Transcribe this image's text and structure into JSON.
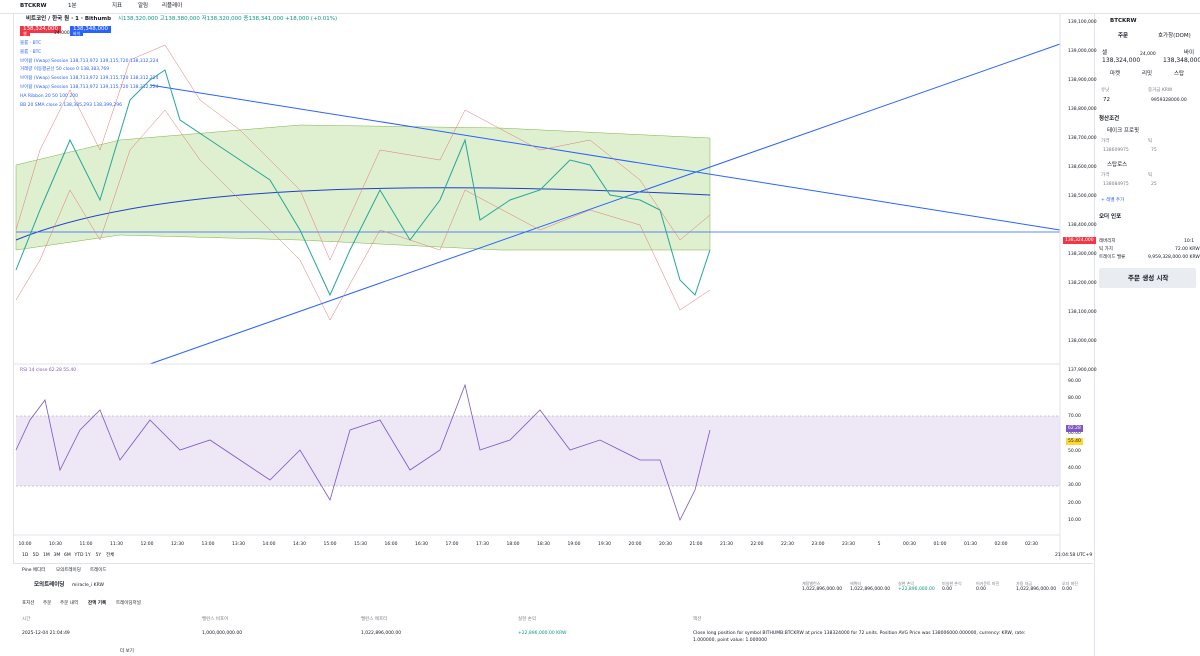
{
  "toolbar": {
    "symbol": "BTCKRW",
    "interval": "1분",
    "indicators": "지표",
    "alerts": "알림",
    "replay": "리플레이"
  },
  "header": {
    "title": "비트코인 / 한국 원 · 1 · Bithumb",
    "ohlc": "시138,320,000 고138,380,000 저138,320,000 종138,341,000 +18,000 (+0.01%)",
    "sell_price": "138,324,000",
    "sell_label": "셀",
    "spread": "24,000",
    "buy_price": "138,348,000",
    "buy_label": "바이"
  },
  "legends": [
    "볼륨 · BTC",
    "볼륨 · BTC",
    "브이왑 (Vwap) Session 138,713,972 139,115,720 138,312,224",
    "거래량 이동평균선 50 close 0 138,383,769",
    "브이왑 (Vwap) Session 138,713,972 139,115,720 138,312,224",
    "브이왑 (Vwap) Session 138,713,972 139,115,720 138,312,224",
    "HA Ribbon 20 50 100 200",
    "BB 20 SMA close 2 138,385,293 138,399,296"
  ],
  "price_axis": [
    "139,100,000",
    "139,000,000",
    "138,900,000",
    "138,800,000",
    "138,700,000",
    "138,600,000",
    "138,500,000",
    "138,400,000",
    "138,300,000",
    "138,200,000",
    "138,100,000",
    "138,000,000",
    "137,900,000"
  ],
  "price_badge": "138,324,000",
  "rsi": {
    "legend": "RSI 14 close 62.28 55.40",
    "axis": [
      "90.00",
      "80.00",
      "70.00",
      "60.00",
      "50.00",
      "40.00",
      "30.00",
      "20.00",
      "10.00"
    ],
    "value": "62.28",
    "ma": "55.40"
  },
  "time_axis": [
    "10:00",
    "10:30",
    "11:00",
    "11:30",
    "12:00",
    "12:30",
    "13:00",
    "13:30",
    "14:00",
    "14:30",
    "15:00",
    "15:30",
    "16:00",
    "16:30",
    "17:00",
    "17:30",
    "18:00",
    "18:30",
    "19:00",
    "19:30",
    "20:00",
    "20:30",
    "21:00",
    "21:30",
    "22:00",
    "22:30",
    "23:00",
    "23:30",
    "5",
    "00:30",
    "01:00",
    "01:30",
    "02:00",
    "02:30"
  ],
  "ranges": [
    "1D",
    "5D",
    "1M",
    "3M",
    "6M",
    "YTD",
    "1Y",
    "5Y",
    "전체"
  ],
  "clock": "21:04:58 UTC+9",
  "order_panel": {
    "symbol": "BTCKRW",
    "tab_order": "주문",
    "tab_dom": "호가창(DOM)",
    "sell": "셀",
    "sell_price": "138,324,000",
    "spread": "24,000",
    "buy": "바이",
    "buy_price": "138,348,000",
    "types": [
      "마켓",
      "리밋",
      "스탑"
    ],
    "unit_label": "유닛",
    "margin_label": "증거금 KRW",
    "units": "72",
    "margin": "9959328000.00",
    "exit_title": "청산조건",
    "take_profit": "테이크 프로핏",
    "tp_price_label": "가격",
    "tp_tick_label": "틱",
    "tp_price": "138609975",
    "tp_ticks": "75",
    "stop_loss": "스탑로스",
    "sl_price_label": "가격",
    "sl_tick_label": "틱",
    "sl_price": "138084975",
    "sl_ticks": "25",
    "add_level": "+ 레벨 추가",
    "info_title": "오더 인포",
    "leverage_label": "레버리지",
    "leverage": "10:1",
    "tick_value_label": "틱 가치",
    "tick_value": "72.00 KRW",
    "trade_value_label": "트레이드 밸류",
    "trade_value": "9,959,328,000.00 KRW",
    "submit": "주문 생성 시작"
  },
  "bottom": {
    "tabs": [
      "Pine 에디터",
      "모의트레이딩",
      "트레이드"
    ],
    "account": "모의트레이딩",
    "account_name": "miracle_i KRW",
    "stats": [
      {
        "label": "계정밸런스",
        "value": "1,022,896,000.00"
      },
      {
        "label": "에퀴티",
        "value": "1,022,896,000.00"
      },
      {
        "label": "실현 손익",
        "value": "+22,896,000.00"
      },
      {
        "label": "미실현 손익",
        "value": "0.00"
      },
      {
        "label": "어카운트 마진",
        "value": "0.00"
      },
      {
        "label": "가용 자금",
        "value": "1,022,896,000.00"
      },
      {
        "label": "오더 마진",
        "value": "0.00"
      }
    ],
    "subtabs": [
      "포지션",
      "주문",
      "주문 내역",
      "잔액 기록",
      "트레이딩저널"
    ],
    "columns": [
      "시간",
      "밸런스 비포어",
      "밸런스 애프터",
      "실현 손익",
      "액션"
    ],
    "row": [
      "2025-12-04 21:04:49",
      "1,000,000,000.00",
      "1,022,896,000.00",
      "+22,896,000.00 KRW",
      "Close long position for symbol BITHUMB:BTCKRW at price 138324000 for 72 units. Position AVG Price was 138006000.000000, currency: KRW, rate: 1.000000, point value: 1.000000"
    ],
    "more": "더 보기"
  }
}
